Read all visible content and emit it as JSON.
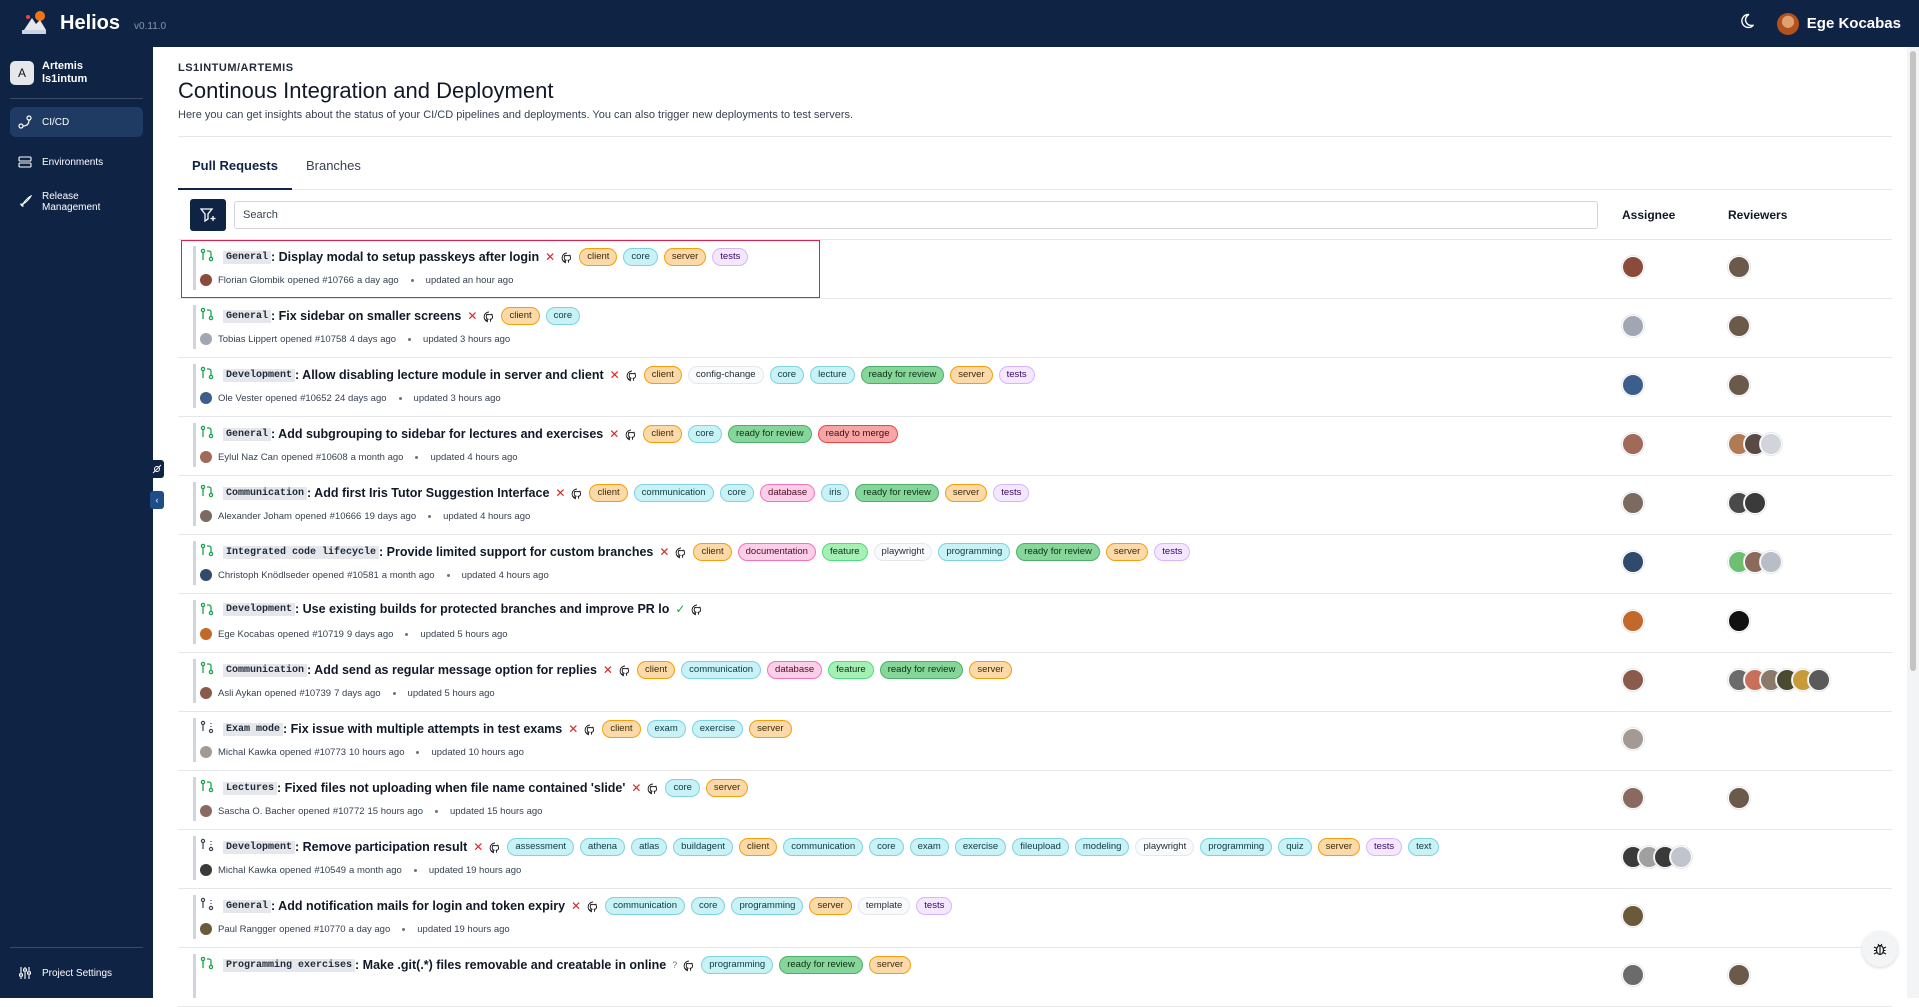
{
  "app": {
    "name": "Helios",
    "version": "v0.11.0",
    "user": "Ege Kocabas"
  },
  "sidebar": {
    "project_initial": "A",
    "project_name": "Artemis",
    "project_owner": "ls1intum",
    "items": [
      {
        "label": "CI/CD",
        "icon": "pipeline-icon",
        "active": true
      },
      {
        "label": "Environments",
        "icon": "server-icon",
        "active": false
      },
      {
        "label": "Release Management",
        "icon": "rocket-icon",
        "active": false
      }
    ],
    "settings_label": "Project Settings"
  },
  "header": {
    "breadcrumb": "LS1INTUM/ARTEMIS",
    "title": "Continous Integration and Deployment",
    "description": "Here you can get insights about the status of your CI/CD pipelines and deployments. You can also trigger new deployments to test servers."
  },
  "tabs": [
    "Pull Requests",
    "Branches"
  ],
  "search": {
    "placeholder": "Search",
    "value": ""
  },
  "columns": {
    "assignee": "Assignee",
    "reviewers": "Reviewers"
  },
  "rows": [
    {
      "scope": "General",
      "title": ": Display modal to setup passkeys after login",
      "status": "fail",
      "tags": [
        [
          "client",
          "t-orange"
        ],
        [
          "core",
          "t-cyan"
        ],
        [
          "server",
          "t-orange"
        ],
        [
          "tests",
          "t-purple"
        ]
      ],
      "author": "Florian Glombik",
      "number": "#10766",
      "opened": "a day ago",
      "updated": "updated an hour ago",
      "assignee_color": "#8a4b3a",
      "reviewers": [
        "#6b5a4a"
      ],
      "draft": false
    },
    {
      "scope": "General",
      "title": ": Fix sidebar on smaller screens",
      "status": "fail",
      "tags": [
        [
          "client",
          "t-orange"
        ],
        [
          "core",
          "t-cyan"
        ]
      ],
      "author": "Tobias Lippert",
      "number": "#10758",
      "opened": "4 days ago",
      "updated": "updated 3 hours ago",
      "assignee_color": "#a0a7b3",
      "reviewers": [
        "#6b5a4a"
      ],
      "draft": false
    },
    {
      "scope": "Development",
      "title": ": Allow disabling lecture module in server and client",
      "status": "fail",
      "tags": [
        [
          "client",
          "t-orange"
        ],
        [
          "config-change",
          "t-greyw"
        ],
        [
          "core",
          "t-cyan"
        ],
        [
          "lecture",
          "t-cyan"
        ],
        [
          "ready for review",
          "t-green"
        ],
        [
          "server",
          "t-orange"
        ],
        [
          "tests",
          "t-purple"
        ]
      ],
      "author": "Ole Vester",
      "number": "#10652",
      "opened": "24 days ago",
      "updated": "updated 3 hours ago",
      "assignee_color": "#3b5f8a",
      "reviewers": [
        "#6b5a4a"
      ],
      "draft": false
    },
    {
      "scope": "General",
      "title": ": Add subgrouping to sidebar for lectures and exercises",
      "status": "fail",
      "tags": [
        [
          "client",
          "t-orange"
        ],
        [
          "core",
          "t-cyan"
        ],
        [
          "ready for review",
          "t-green"
        ],
        [
          "ready to merge",
          "t-red"
        ]
      ],
      "author": "Eylul Naz Can",
      "number": "#10608",
      "opened": "a month ago",
      "updated": "updated 4 hours ago",
      "assignee_color": "#a0695a",
      "reviewers": [
        "#b07a55",
        "#5a4a44",
        "#d1d5db"
      ],
      "draft": false
    },
    {
      "scope": "Communication",
      "title": ": Add first Iris Tutor Suggestion Interface",
      "status": "fail",
      "tags": [
        [
          "client",
          "t-orange"
        ],
        [
          "communication",
          "t-cyan"
        ],
        [
          "core",
          "t-cyan"
        ],
        [
          "database",
          "t-pink"
        ],
        [
          "iris",
          "t-cyan"
        ],
        [
          "ready for review",
          "t-green"
        ],
        [
          "server",
          "t-orange"
        ],
        [
          "tests",
          "t-purple"
        ]
      ],
      "author": "Alexander Joham",
      "number": "#10666",
      "opened": "19 days ago",
      "updated": "updated 4 hours ago",
      "assignee_color": "#7a6a60",
      "reviewers": [
        "#4a4a4a",
        "#3a3a3a"
      ],
      "draft": false
    },
    {
      "scope": "Integrated code lifecycle",
      "title": ": Provide limited support for custom branches",
      "status": "fail",
      "tags": [
        [
          "client",
          "t-orange"
        ],
        [
          "documentation",
          "t-pink"
        ],
        [
          "feature",
          "t-lime"
        ],
        [
          "playwright",
          "t-greyw"
        ],
        [
          "programming",
          "t-cyan"
        ],
        [
          "ready for review",
          "t-green"
        ],
        [
          "server",
          "t-orange"
        ],
        [
          "tests",
          "t-purple"
        ]
      ],
      "author": "Christoph Knödlseder",
      "number": "#10581",
      "opened": "a month ago",
      "updated": "updated 4 hours ago",
      "assignee_color": "#2f4a6a",
      "reviewers": [
        "#6fbf73",
        "#8a6a5a",
        "#b9bdc5"
      ],
      "draft": false
    },
    {
      "scope": "Development",
      "title": ": Use existing builds for protected branches and improve PR lo",
      "status": "ok",
      "tags": [],
      "author": "Ege Kocabas",
      "number": "#10719",
      "opened": "9 days ago",
      "updated": "updated 5 hours ago",
      "assignee_color": "#c2682a",
      "reviewers": [
        "#111111"
      ],
      "draft": false
    },
    {
      "scope": "Communication",
      "title": ": Add send as regular message option for replies",
      "status": "fail",
      "tags": [
        [
          "client",
          "t-orange"
        ],
        [
          "communication",
          "t-cyan"
        ],
        [
          "database",
          "t-pink"
        ],
        [
          "feature",
          "t-lime"
        ],
        [
          "ready for review",
          "t-green"
        ],
        [
          "server",
          "t-orange"
        ]
      ],
      "author": "Asli Aykan",
      "number": "#10739",
      "opened": "7 days ago",
      "updated": "updated 5 hours ago",
      "assignee_color": "#8a5a4a",
      "reviewers": [
        "#6b6b6b",
        "#c9705a",
        "#8a7a6a",
        "#4a4a30",
        "#c79a3a",
        "#5a5a5a"
      ],
      "draft": false
    },
    {
      "scope": "Exam mode",
      "title": ": Fix issue with multiple attempts in test exams",
      "status": "fail",
      "tags": [
        [
          "client",
          "t-orange"
        ],
        [
          "exam",
          "t-cyan"
        ],
        [
          "exercise",
          "t-cyan"
        ],
        [
          "server",
          "t-orange"
        ]
      ],
      "author": "Michal Kawka",
      "number": "#10773",
      "opened": "10 hours ago",
      "updated": "updated 10 hours ago",
      "assignee_color": "#a39a94",
      "reviewers": [],
      "draft": true
    },
    {
      "scope": "Lectures",
      "title": ": Fixed files not uploading when file name contained 'slide'",
      "status": "fail",
      "tags": [
        [
          "core",
          "t-cyan"
        ],
        [
          "server",
          "t-orange"
        ]
      ],
      "author": "Sascha O. Bacher",
      "number": "#10772",
      "opened": "15 hours ago",
      "updated": "updated 15 hours ago",
      "assignee_color": "#8a6a60",
      "reviewers": [
        "#6b5a4a"
      ],
      "draft": false
    },
    {
      "scope": "Development",
      "title": ": Remove participation result",
      "status": "fail",
      "tags": [
        [
          "assessment",
          "t-cyan"
        ],
        [
          "athena",
          "t-cyan"
        ],
        [
          "atlas",
          "t-cyan"
        ],
        [
          "buildagent",
          "t-cyan"
        ],
        [
          "client",
          "t-orange"
        ],
        [
          "communication",
          "t-cyan"
        ],
        [
          "core",
          "t-cyan"
        ],
        [
          "exam",
          "t-cyan"
        ],
        [
          "exercise",
          "t-cyan"
        ],
        [
          "fileupload",
          "t-cyan"
        ],
        [
          "modeling",
          "t-cyan"
        ],
        [
          "playwright",
          "t-greyw"
        ],
        [
          "programming",
          "t-cyan"
        ],
        [
          "quiz",
          "t-cyan"
        ],
        [
          "server",
          "t-orange"
        ],
        [
          "tests",
          "t-purple"
        ],
        [
          "text",
          "t-cyan"
        ]
      ],
      "author": "Michal Kawka",
      "number": "#10549",
      "opened": "a month ago",
      "updated": "updated 19 hours ago",
      "assignee_color": "#3a3a3a",
      "reviewers": [],
      "extra_assignees": [
        "#a0a0a0",
        "#3a3a3a",
        "#c0c4cc"
      ],
      "draft": true
    },
    {
      "scope": "General",
      "title": ": Add notification mails for login and token expiry",
      "status": "fail",
      "tags": [
        [
          "communication",
          "t-cyan"
        ],
        [
          "core",
          "t-cyan"
        ],
        [
          "programming",
          "t-cyan"
        ],
        [
          "server",
          "t-orange"
        ],
        [
          "template",
          "t-greyw"
        ],
        [
          "tests",
          "t-purple"
        ]
      ],
      "author": "Paul Rangger",
      "number": "#10770",
      "opened": "a day ago",
      "updated": "updated 19 hours ago",
      "assignee_color": "#6b5a3a",
      "reviewers": [],
      "draft": true
    },
    {
      "scope": "Programming exercises",
      "title": ": Make .git(.*) files removable and creatable in online",
      "status": "pending",
      "tags": [
        [
          "programming",
          "t-cyan"
        ],
        [
          "ready for review",
          "t-green"
        ],
        [
          "server",
          "t-orange"
        ]
      ],
      "author": "",
      "number": "",
      "opened": "",
      "updated": "",
      "assignee_color": "#6b6b6b",
      "reviewers": [
        "#6b5a4a"
      ],
      "draft": false
    }
  ]
}
